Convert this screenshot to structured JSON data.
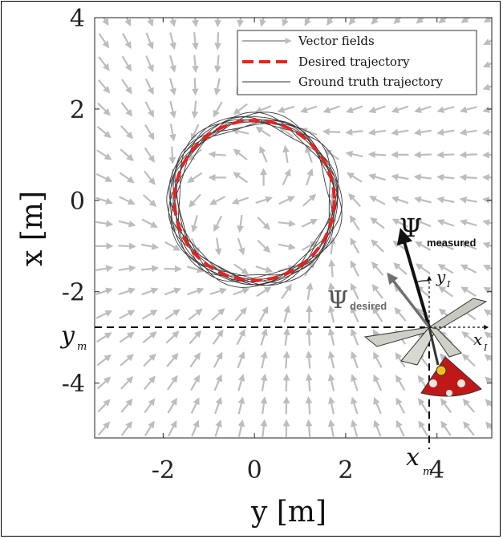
{
  "chart_data": {
    "type": "line",
    "xlabel": "y [m]",
    "ylabel": "x [m]",
    "xlim": [
      -3.5,
      5.2
    ],
    "ylim": [
      -5.2,
      4.0
    ],
    "xticks": [
      -2,
      0,
      2,
      4
    ],
    "yticks": [
      4,
      2,
      0,
      -2,
      -4
    ],
    "grid": false,
    "legend_position": "top-right",
    "legend": [
      {
        "name": "Vector fields",
        "color": "#b0b0b0",
        "style": "arrow"
      },
      {
        "name": "Desired trajectory",
        "color": "#e8221f",
        "style": "dashed"
      },
      {
        "name": "Ground truth trajectory",
        "color": "#333333",
        "style": "solid"
      }
    ],
    "desired_trajectory": {
      "shape": "circle",
      "center": [
        0,
        0
      ],
      "radius": 1.75
    },
    "ground_truth": {
      "laps": 10,
      "mean_radius": 1.78,
      "radius_spread": 0.12
    },
    "measured_position": {
      "y": 3.6,
      "x": -2.7
    },
    "annotations": {
      "psi_measured": "Ψ",
      "psi_measured_sub": "measured",
      "psi_desired": "Ψ",
      "psi_desired_sub": "desired",
      "ym_main": "y",
      "ym_sub": "m",
      "xm_main": "x",
      "xm_sub": "m",
      "xi_main": "x",
      "xi_sub": "I",
      "yi_main": "y",
      "yi_sub": "I"
    },
    "colors": {
      "field": "#bdbdbd",
      "desired": "#e8221f",
      "truth": "#3a3a3a",
      "psi_desired": "#707070"
    }
  }
}
